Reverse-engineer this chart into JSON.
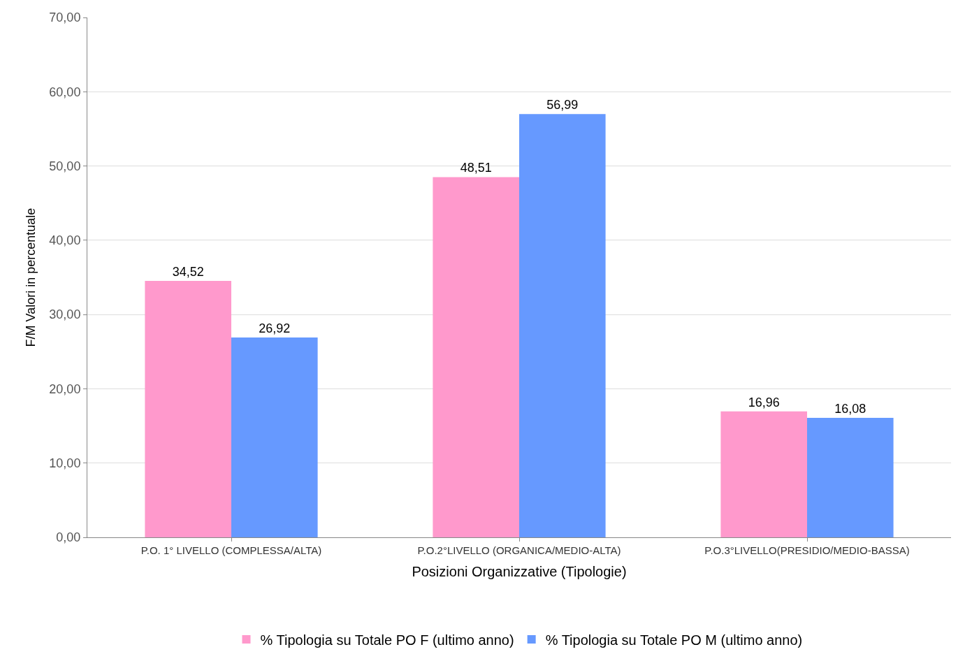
{
  "chart_data": {
    "type": "bar",
    "xlabel": "Posizioni Organizzative (Tipologie)",
    "ylabel": "F/M Valori in percentuale",
    "categories": [
      "P.O. 1° LIVELLO (COMPLESSA/ALTA)",
      "P.O.2°LIVELLO (ORGANICA/MEDIO-ALTA)",
      "P.O.3°LIVELLO(PRESIDIO/MEDIO-BASSA)"
    ],
    "series": [
      {
        "name": "% Tipologia su Totale PO F (ultimo anno)",
        "color": "#ff99cc",
        "values": [
          34.52,
          48.51,
          16.96
        ],
        "value_labels": [
          "34,52",
          "48,51",
          "16,96"
        ]
      },
      {
        "name": "% Tipologia su Totale PO M (ultimo anno)",
        "color": "#6699ff",
        "values": [
          26.92,
          56.99,
          16.08
        ],
        "value_labels": [
          "26,92",
          "56,99",
          "16,08"
        ]
      }
    ],
    "ylim": [
      0,
      70
    ],
    "yticks": [
      {
        "value": 0,
        "label": "0,00"
      },
      {
        "value": 10,
        "label": "10,00"
      },
      {
        "value": 20,
        "label": "20,00"
      },
      {
        "value": 30,
        "label": "30,00"
      },
      {
        "value": 40,
        "label": "40,00"
      },
      {
        "value": 50,
        "label": "50,00"
      },
      {
        "value": 60,
        "label": "60,00"
      },
      {
        "value": 70,
        "label": "70,00"
      }
    ],
    "grid": "y",
    "legend": "bottom"
  }
}
